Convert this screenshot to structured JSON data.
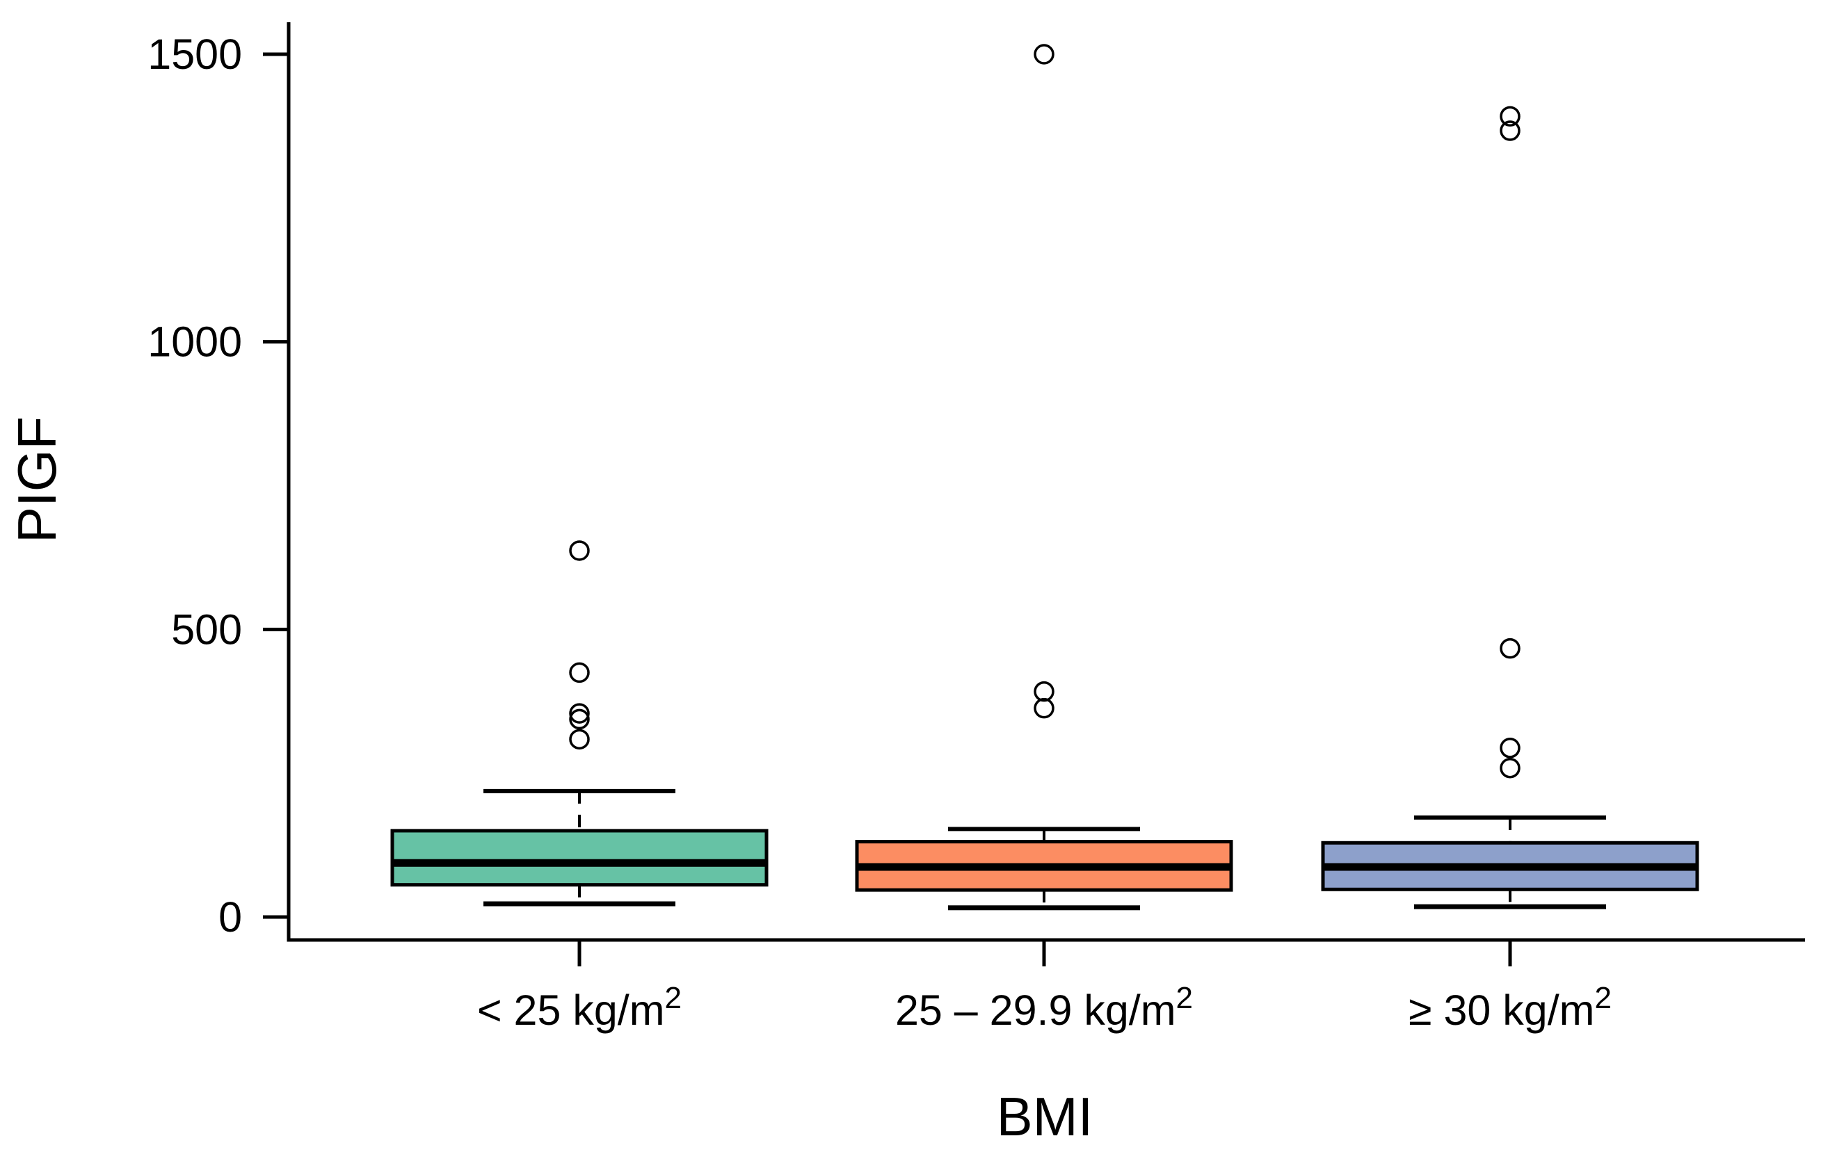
{
  "figure": {
    "background": "#FFFFFF",
    "axis_color": "#000000"
  },
  "chart_data": {
    "type": "boxplot",
    "title": "",
    "xlabel": "BMI",
    "ylabel": "PIGF",
    "ylim": [
      0,
      1550
    ],
    "yticks": [
      0,
      500,
      1000,
      1500
    ],
    "grid": false,
    "legend": false,
    "categories": [
      {
        "display": "< 25 kg/m²",
        "base": "< 25 kg/m",
        "superscript": "2"
      },
      {
        "display": "25 – 29.9 kg/m²",
        "base": "25 – 29.9 kg/m",
        "superscript": "2"
      },
      {
        "display": "≥ 30 kg/m²",
        "base": "≥ 30 kg/m",
        "superscript": "2"
      }
    ],
    "series": [
      {
        "category": "< 25 kg/m²",
        "color": "#66C2A5",
        "whisker_low": 23,
        "q1": 56,
        "median": 94,
        "q3": 150,
        "whisker_high": 219,
        "outliers": [
          637,
          425,
          354,
          344,
          309
        ]
      },
      {
        "category": "25 – 29.9 kg/m²",
        "color": "#FC8D62",
        "whisker_low": 16,
        "q1": 47,
        "median": 87,
        "q3": 131,
        "whisker_high": 153,
        "outliers": [
          1500,
          392,
          363
        ]
      },
      {
        "category": "≥ 30 kg/m²",
        "color": "#8DA0CB",
        "whisker_low": 18,
        "q1": 48,
        "median": 87,
        "q3": 129,
        "whisker_high": 173,
        "outliers": [
          1392,
          1367,
          467,
          294,
          259
        ]
      }
    ]
  }
}
